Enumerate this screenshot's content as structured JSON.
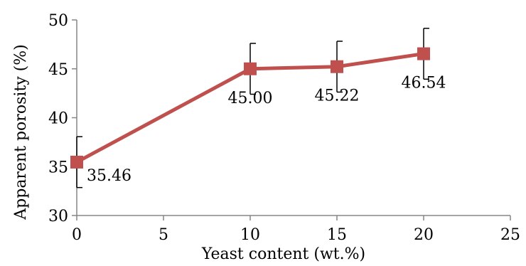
{
  "chart_data": {
    "type": "line",
    "title": "",
    "xlabel": "Yeast content (wt.%)",
    "ylabel": "Apparent porosity (%)",
    "xlim": [
      0,
      25
    ],
    "ylim": [
      30,
      50
    ],
    "xticks": [
      0,
      5,
      10,
      15,
      20,
      25
    ],
    "yticks": [
      30,
      35,
      40,
      45,
      50
    ],
    "grid": false,
    "legend": "none",
    "series": [
      {
        "color": "#c0504d",
        "marker": "square",
        "x": [
          0,
          10,
          15,
          20
        ],
        "y": [
          35.46,
          45.0,
          45.22,
          46.54
        ],
        "error": [
          2.6,
          2.6,
          2.6,
          2.6
        ],
        "labels": [
          "35.46",
          "45.00",
          "45.22",
          "46.54"
        ]
      }
    ]
  }
}
